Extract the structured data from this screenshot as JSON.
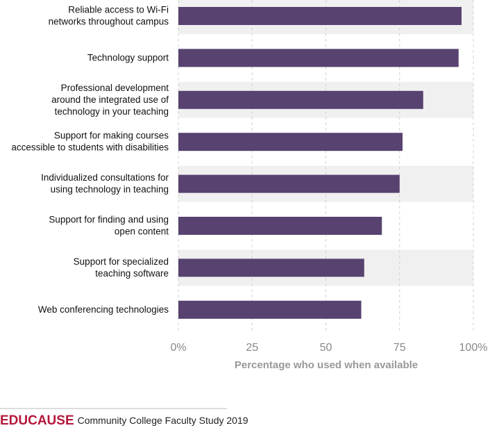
{
  "chart_data": {
    "type": "barh",
    "categories": [
      "Reliable access to Wi-Fi\nnetworks throughout campus",
      "Technology support",
      "Professional development\naround the integrated use of\ntechnology in your teaching",
      "Support for making courses\naccessible to students with disabilities",
      "Individualized consultations for\nusing technology in teaching",
      "Support for finding and using\nopen content",
      "Support for specialized\nteaching software",
      "Web conferencing technologies"
    ],
    "values": [
      96,
      95,
      83,
      76,
      75,
      69,
      63,
      62
    ],
    "color": "#574270",
    "xlim": [
      0,
      100
    ],
    "xticks": [
      {
        "value": 0,
        "label": "0%"
      },
      25,
      50,
      75,
      {
        "value": 100,
        "label": "100%"
      }
    ],
    "xlabel": "Percentage who used when available",
    "grid": true
  },
  "footer": {
    "brand": "EDUCAUSE",
    "text": "Community College Faculty Study 2019"
  }
}
